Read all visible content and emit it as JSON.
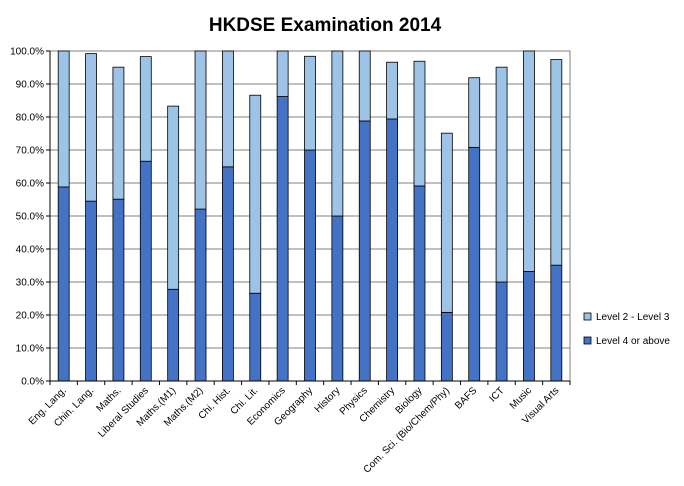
{
  "chart_data": {
    "type": "bar",
    "stacked": true,
    "title": "HKDSE Examination 2014",
    "xlabel": "",
    "ylabel": "",
    "ylim": [
      0,
      100
    ],
    "y_tick_labels": [
      "0.0%",
      "10.0%",
      "20.0%",
      "30.0%",
      "40.0%",
      "50.0%",
      "60.0%",
      "70.0%",
      "80.0%",
      "90.0%",
      "100.0%"
    ],
    "grid": true,
    "legend_position": "right",
    "categories": [
      "Eng. Lang.",
      "Chin. Lang.",
      "Maths.",
      "Liberal Studies",
      "Maths.(M1)",
      "Maths.(M2)",
      "Chi. Hist.",
      "Chi. Lit.",
      "Economics",
      "Geography",
      "History",
      "Physics",
      "Chemistry",
      "Biology",
      "Com. Sci. (Bio/Chem/Phy)",
      "BAFS",
      "ICT",
      "Music",
      "Visual Arts"
    ],
    "series": [
      {
        "name": "Level 4 or above",
        "color": "#4472C4",
        "values": [
          58.8,
          54.5,
          55.1,
          66.6,
          27.8,
          52.1,
          64.9,
          26.6,
          86.2,
          70.0,
          50.0,
          78.8,
          79.4,
          59.1,
          20.8,
          70.8,
          30.0,
          33.2,
          35.1
        ]
      },
      {
        "name": "Level 2 - Level 3",
        "color": "#9DC3E6",
        "values": [
          41.2,
          44.7,
          40.0,
          31.7,
          55.5,
          47.9,
          35.1,
          60.0,
          13.8,
          28.4,
          50.0,
          21.2,
          17.2,
          37.8,
          54.3,
          21.1,
          65.1,
          66.8,
          62.3
        ]
      }
    ]
  }
}
